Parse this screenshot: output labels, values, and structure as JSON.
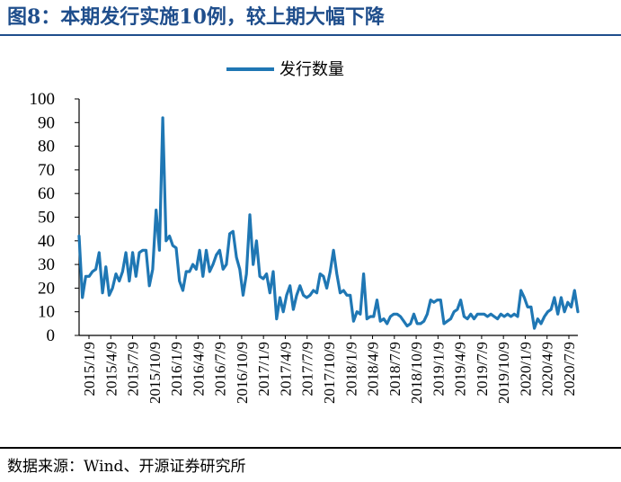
{
  "title": "图8：本期发行实施10例，较上期大幅下降",
  "source": "数据来源：Wind、开源证券研究所",
  "chart_data": {
    "type": "line",
    "legend": "发行数量",
    "color": "#1f77b4",
    "ylim": [
      0,
      100
    ],
    "yticks": [
      "0",
      "10",
      "20",
      "30",
      "40",
      "50",
      "60",
      "70",
      "80",
      "90",
      "100"
    ],
    "xticks": [
      "2015/1/9",
      "2015/4/9",
      "2015/7/9",
      "2015/10/9",
      "2016/1/9",
      "2016/4/9",
      "2016/7/9",
      "2016/10/9",
      "2017/1/9",
      "2017/4/9",
      "2017/7/9",
      "2017/10/9",
      "2018/1/9",
      "2018/4/9",
      "2018/7/9",
      "2018/10/9",
      "2019/1/9",
      "2019/4/9",
      "2019/7/9",
      "2019/10/9",
      "2020/1/9",
      "2020/4/9",
      "2020/7/9"
    ],
    "series": [
      {
        "name": "发行数量",
        "values": [
          42,
          16,
          25,
          25,
          27,
          28,
          35,
          18,
          29,
          17,
          20,
          26,
          23,
          27,
          35,
          23,
          35,
          25,
          35,
          36,
          36,
          21,
          28,
          53,
          36,
          92,
          40,
          42,
          38,
          37,
          23,
          19,
          27,
          27,
          30,
          28,
          36,
          25,
          36,
          27,
          30,
          34,
          36,
          28,
          30,
          43,
          44,
          33,
          28,
          17,
          26,
          51,
          30,
          40,
          25,
          24,
          26,
          18,
          27,
          7,
          16,
          10,
          17,
          21,
          11,
          17,
          21,
          17,
          16,
          17,
          19,
          18,
          26,
          25,
          20,
          27,
          36,
          26,
          18,
          19,
          17,
          17,
          6,
          10,
          9,
          26,
          7,
          8,
          8,
          15,
          6,
          7,
          5,
          8,
          9,
          9,
          8,
          6,
          4,
          5,
          9,
          5,
          5,
          6,
          9,
          15,
          14,
          15,
          15,
          5,
          6,
          7,
          10,
          11,
          15,
          8,
          7,
          9,
          7,
          9,
          9,
          9,
          8,
          9,
          8,
          7,
          9,
          8,
          9,
          8,
          9,
          8,
          19,
          16,
          12,
          12,
          3,
          7,
          5,
          8,
          10,
          11,
          16,
          9,
          16,
          10,
          14,
          12,
          19,
          10
        ]
      }
    ]
  }
}
